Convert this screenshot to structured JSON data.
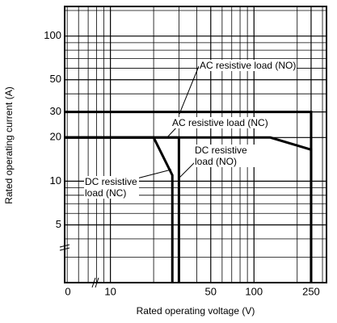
{
  "chart_data": {
    "type": "line",
    "x_label": "Rated operating voltage (V)",
    "y_label": "Rated operating current (A)",
    "x_origin_label": "0",
    "xlog": true,
    "ylog": true,
    "grid": true,
    "xlim": [
      4.8,
      320
    ],
    "ylim": [
      2,
      160
    ],
    "xticks": [
      10,
      50,
      100,
      250
    ],
    "yticks": [
      5,
      10,
      20,
      30,
      50,
      100
    ],
    "x_minor_grid": [
      5,
      6,
      7,
      8,
      9,
      20,
      30,
      40,
      60,
      70,
      80,
      90,
      200,
      300
    ],
    "y_minor_grid": [
      3,
      4,
      6,
      7,
      8,
      9,
      40,
      60,
      70,
      80,
      90,
      150
    ],
    "series": [
      {
        "name": "AC resistive load (NO)",
        "color": "#000000",
        "x": [
          4.8,
          250,
          250
        ],
        "values": [
          30,
          30,
          2
        ]
      },
      {
        "name": "AC resistive load (NC)",
        "color": "#000000",
        "x": [
          4.8,
          130,
          250,
          250
        ],
        "values": [
          20,
          20,
          16.5,
          2
        ]
      },
      {
        "name": "DC resistive load (NO)",
        "color": "#000000",
        "x": [
          4.8,
          30,
          30
        ],
        "values": [
          20,
          20,
          2
        ]
      },
      {
        "name": "DC resistive load (NC)",
        "color": "#000000",
        "x": [
          4.8,
          20,
          27,
          27
        ],
        "values": [
          20,
          20,
          11,
          2
        ]
      }
    ]
  }
}
